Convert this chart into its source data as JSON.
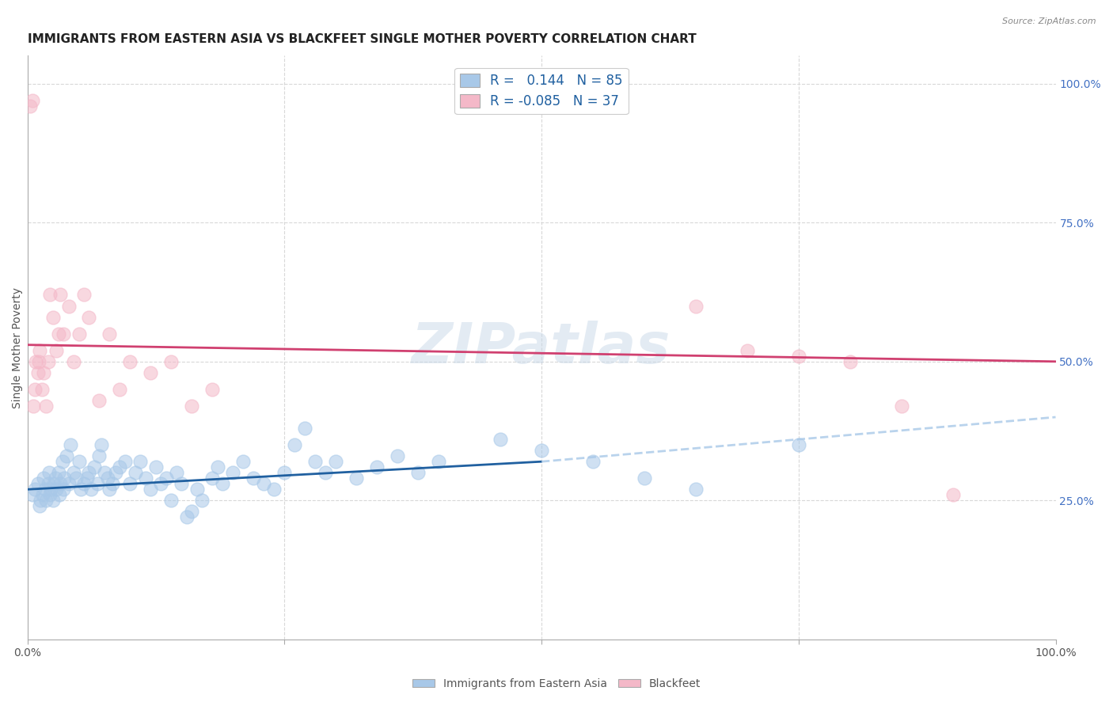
{
  "title": "IMMIGRANTS FROM EASTERN ASIA VS BLACKFEET SINGLE MOTHER POVERTY CORRELATION CHART",
  "source": "Source: ZipAtlas.com",
  "ylabel": "Single Mother Poverty",
  "legend_label1": "Immigrants from Eastern Asia",
  "legend_label2": "Blackfeet",
  "r1": 0.144,
  "n1": 85,
  "r2": -0.085,
  "n2": 37,
  "blue_color": "#a8c8e8",
  "pink_color": "#f4b8c8",
  "blue_fill": "#a8c8e8",
  "pink_fill": "#f4b8c8",
  "blue_line_color": "#2060a0",
  "pink_line_color": "#d04070",
  "watermark_color": "#c8d8e8",
  "blue_scatter_x": [
    0.5,
    0.7,
    1.0,
    1.2,
    1.3,
    1.5,
    1.6,
    1.7,
    1.8,
    2.0,
    2.1,
    2.2,
    2.3,
    2.5,
    2.6,
    2.7,
    2.8,
    3.0,
    3.1,
    3.2,
    3.4,
    3.5,
    3.6,
    3.8,
    4.0,
    4.2,
    4.5,
    4.7,
    5.0,
    5.2,
    5.5,
    5.8,
    6.0,
    6.2,
    6.5,
    6.8,
    7.0,
    7.2,
    7.5,
    7.8,
    8.0,
    8.3,
    8.6,
    9.0,
    9.5,
    10.0,
    10.5,
    11.0,
    11.5,
    12.0,
    12.5,
    13.0,
    13.5,
    14.0,
    14.5,
    15.0,
    15.5,
    16.0,
    16.5,
    17.0,
    18.0,
    18.5,
    19.0,
    20.0,
    21.0,
    22.0,
    23.0,
    24.0,
    25.0,
    26.0,
    27.0,
    28.0,
    29.0,
    30.0,
    32.0,
    34.0,
    36.0,
    38.0,
    40.0,
    46.0,
    50.0,
    55.0,
    60.0,
    65.0,
    75.0
  ],
  "blue_scatter_y": [
    26,
    27,
    28,
    24,
    25,
    26,
    29,
    27,
    25,
    28,
    30,
    26,
    27,
    25,
    28,
    29,
    27,
    30,
    26,
    28,
    32,
    27,
    29,
    33,
    28,
    35,
    30,
    29,
    32,
    27,
    28,
    29,
    30,
    27,
    31,
    28,
    33,
    35,
    30,
    29,
    27,
    28,
    30,
    31,
    32,
    28,
    30,
    32,
    29,
    27,
    31,
    28,
    29,
    25,
    30,
    28,
    22,
    23,
    27,
    25,
    29,
    31,
    28,
    30,
    32,
    29,
    28,
    27,
    30,
    35,
    38,
    32,
    30,
    32,
    29,
    31,
    33,
    30,
    32,
    36,
    34,
    32,
    29,
    27,
    35
  ],
  "pink_scatter_x": [
    0.3,
    0.5,
    0.6,
    0.7,
    0.8,
    1.0,
    1.1,
    1.2,
    1.4,
    1.6,
    1.8,
    2.0,
    2.2,
    2.5,
    2.8,
    3.0,
    3.2,
    3.5,
    4.0,
    4.5,
    5.0,
    5.5,
    6.0,
    7.0,
    8.0,
    9.0,
    10.0,
    12.0,
    14.0,
    16.0,
    18.0,
    65.0,
    70.0,
    75.0,
    80.0,
    85.0,
    90.0
  ],
  "pink_scatter_y": [
    96,
    97,
    42,
    45,
    50,
    48,
    50,
    52,
    45,
    48,
    42,
    50,
    62,
    58,
    52,
    55,
    62,
    55,
    60,
    50,
    55,
    62,
    58,
    43,
    55,
    45,
    50,
    48,
    50,
    42,
    45,
    60,
    52,
    51,
    50,
    42,
    26
  ],
  "blue_line_x0": 0,
  "blue_line_x1": 50,
  "blue_line_y0": 27,
  "blue_line_y1": 32,
  "blue_dash_x0": 50,
  "blue_dash_x1": 100,
  "blue_dash_y0": 32,
  "blue_dash_y1": 40,
  "pink_line_x0": 0,
  "pink_line_x1": 100,
  "pink_line_y0": 53,
  "pink_line_y1": 50,
  "xlim": [
    0,
    100
  ],
  "ylim": [
    0,
    105
  ],
  "yticks_right": [
    25,
    50,
    75,
    100
  ],
  "ytick_labels_right": [
    "25.0%",
    "50.0%",
    "75.0%",
    "100.0%"
  ],
  "grid_color": "#d8d8d8",
  "background_color": "#ffffff",
  "title_fontsize": 11,
  "axis_label_fontsize": 10,
  "tick_fontsize": 10,
  "source_fontsize": 8
}
